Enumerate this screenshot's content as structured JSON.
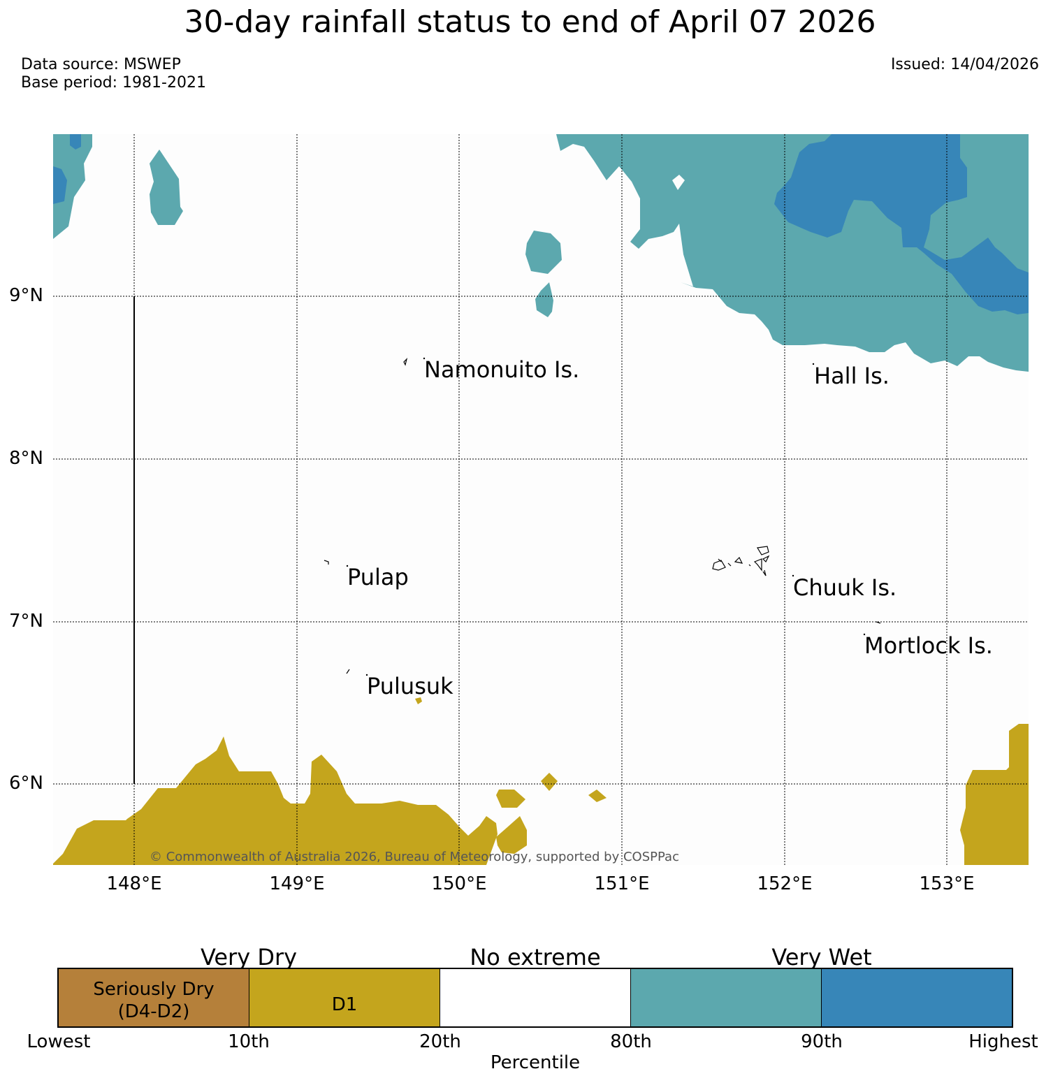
{
  "title": "30-day rainfall status to end of April 07 2026",
  "meta": {
    "data_source": "Data source: MSWEP",
    "base_period": "Base period: 1981-2021",
    "issued": "Issued: 14/04/2026"
  },
  "map": {
    "lat_labels": [
      "9°N",
      "8°N",
      "7°N",
      "6°N"
    ],
    "lon_labels": [
      "148°E",
      "149°E",
      "150°E",
      "151°E",
      "152°E",
      "153°E"
    ],
    "places": {
      "namonuito": "Namonuito Is.",
      "hall": "Hall Is.",
      "pulap": "Pulap",
      "chuuk": "Chuuk Is.",
      "mortlock": "Mortlock Is.",
      "pulusuk": "Pulusuk"
    },
    "copyright": "© Commonwealth of Australia 2026, Bureau of Meteorology, supported by COSPPac",
    "colors": {
      "seriously_dry": "#b5803a",
      "d1": "#c4a51d",
      "no_extreme": "#ffffff",
      "very_wet_80_90": "#5ca8ae",
      "very_wet_90_plus": "#3786b8"
    }
  },
  "legend": {
    "categories": {
      "very_dry": "Very Dry",
      "no_extreme": "No extreme",
      "very_wet": "Very Wet"
    },
    "swatches": {
      "seriously_dry": "Seriously Dry",
      "seriously_dry_sub": "(D4-D2)",
      "d1": "D1"
    },
    "ticks": [
      "Lowest",
      "10th",
      "20th",
      "80th",
      "90th",
      "Highest"
    ],
    "axis_title": "Percentile"
  }
}
